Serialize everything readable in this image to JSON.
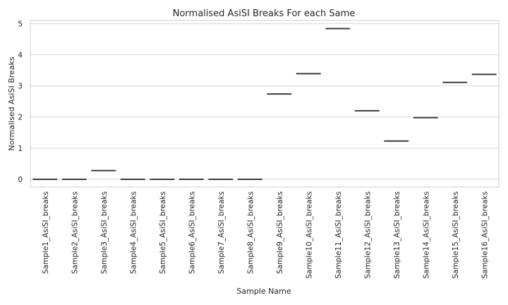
{
  "chart_data": {
    "type": "box",
    "title": "Normalised AsiSI Breaks For each Same",
    "xlabel": "Sample Name",
    "ylabel": "Normalised AsiSI Breaks",
    "ylim": [
      -0.25,
      5.1
    ],
    "yticks": [
      0,
      1,
      2,
      3,
      4,
      5
    ],
    "grid": true,
    "categories": [
      "Sample1_AsiSI_breaks",
      "Sample2_AsiSI_breaks",
      "Sample3_AsiSI_breaks",
      "Sample4_AsiSI_breaks",
      "Sample5_AsiSI_breaks",
      "Sample6_AsiSI_breaks",
      "Sample7_AsiSI_breaks",
      "Sample8_AsiSI_breaks",
      "Sample9_AsiSI_breaks",
      "Sample10_AsiSI_breaks",
      "Sample11_AsiSI_breaks",
      "Sample12_AsiSI_breaks",
      "Sample13_AsiSI_breaks",
      "Sample14_AsiSI_breaks",
      "Sample15_AsiSI_breaks",
      "Sample16_AsiSI_breaks"
    ],
    "values": [
      0,
      0,
      0.28,
      0,
      0,
      0,
      0,
      0,
      2.74,
      3.39,
      4.84,
      2.2,
      1.23,
      1.98,
      3.11,
      3.37
    ],
    "colors": {
      "median": "#3b3b3b",
      "grid": "#d8d8d8",
      "text": "#262626"
    }
  }
}
